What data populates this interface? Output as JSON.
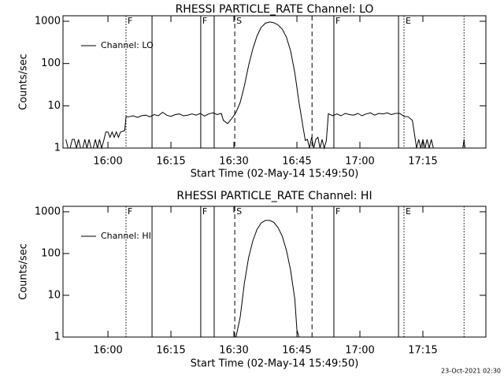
{
  "chart_data": [
    {
      "type": "line",
      "title": "RHESSI PARTICLE_RATE Channel: LO",
      "xlabel": "Start Time (02-May-14 15:49:50)",
      "ylabel": "Counts/sec",
      "x": [
        950,
        950.5,
        951,
        951.5,
        952,
        952.5,
        953,
        953.5,
        954,
        954.5,
        955,
        955.5,
        956,
        956.5,
        957,
        957.5,
        958,
        958.5,
        959,
        959.5,
        960,
        960.5,
        961,
        961.5,
        962,
        962.5,
        963,
        964,
        964.3,
        965,
        966,
        967,
        968,
        969,
        970,
        971,
        972,
        973,
        974,
        975,
        976,
        977,
        978,
        979,
        980,
        981,
        982,
        983,
        984,
        985,
        986,
        987,
        987.5,
        988.5,
        989.5,
        990.5,
        991.5,
        992.5,
        993.5,
        994.5,
        995.5,
        996.5,
        997.5,
        998.5,
        999.5,
        1000.5,
        1001.5,
        1002.5,
        1003.5,
        1004.5,
        1005.5,
        1006.5,
        1007,
        1007.5,
        1008,
        1008.5,
        1009,
        1009.5,
        1010,
        1010.5,
        1011,
        1011.5,
        1012,
        1012.5,
        1013.5,
        1014.5,
        1015.5,
        1016.5,
        1017.5,
        1018.5,
        1019.5,
        1020.5,
        1021.5,
        1022.5,
        1023.5,
        1024.5,
        1025.5,
        1026.5,
        1027.5,
        1028.5,
        1029.5,
        1030.5,
        1031.5,
        1032.5,
        1033.5,
        1034,
        1034.5,
        1035,
        1035.5,
        1036,
        1036.5,
        1037,
        1037.5,
        1038,
        1044.5,
        1044.8,
        1045,
        1050
      ],
      "series": [
        {
          "name": "Channel: LO",
          "color": "#000000",
          "values": [
            1.6,
            1,
            1,
            1.6,
            1.6,
            1,
            1.6,
            1,
            1,
            1.6,
            1,
            1.6,
            1,
            1,
            1.6,
            1,
            1.6,
            1,
            1.5,
            2.4,
            2.4,
            1.8,
            2.4,
            1.8,
            2.4,
            1.8,
            2.4,
            2.6,
            5.5,
            5.5,
            5.8,
            5.3,
            5.8,
            6,
            5.5,
            6.2,
            5.8,
            7,
            6,
            5.6,
            6.2,
            6.4,
            5.8,
            6,
            6.4,
            6,
            6.6,
            5.7,
            6.4,
            6.8,
            6.2,
            6.6,
            4.5,
            3.8,
            5,
            7,
            12,
            30,
            90,
            220,
            450,
            720,
            900,
            960,
            920,
            820,
            650,
            420,
            200,
            60,
            12,
            3,
            1.5,
            1.6,
            1,
            1.8,
            1,
            1.6,
            1.8,
            1,
            1.6,
            1,
            1.5,
            6.5,
            5.8,
            6.4,
            5.8,
            6.6,
            6.2,
            6,
            6.6,
            5.8,
            6.4,
            6.8,
            6,
            6.6,
            6.4,
            6.8,
            6.2,
            6.6,
            6.6,
            5.6,
            5.5,
            4.5,
            1,
            1.6,
            1,
            1.6,
            1,
            1.6,
            1,
            1.6,
            1,
            1,
            1,
            1.6,
            1,
            1
          ]
        }
      ],
      "xlim": [
        949.3,
        1050
      ],
      "ylim": [
        1,
        1350
      ],
      "log_y": true,
      "legend": "upper left",
      "xticks": [
        {
          "value": 960,
          "label": "16:00"
        },
        {
          "value": 975,
          "label": "16:15"
        },
        {
          "value": 990,
          "label": "16:30"
        },
        {
          "value": 1005,
          "label": "16:45"
        },
        {
          "value": 1020,
          "label": "17:00"
        },
        {
          "value": 1035,
          "label": "17:15"
        }
      ],
      "yticks": [
        1,
        10,
        100,
        1000
      ],
      "markers": [
        {
          "x": 964.3,
          "style": "dotted",
          "label": "F"
        },
        {
          "x": 970.5,
          "style": "solid"
        },
        {
          "x": 982.1,
          "style": "solid",
          "label": "F"
        },
        {
          "x": 985.3,
          "style": "solid"
        },
        {
          "x": 990.2,
          "style": "dashed",
          "label": "S"
        },
        {
          "x": 1008.6,
          "style": "dashed"
        },
        {
          "x": 1013.8,
          "style": "solid",
          "label": "F"
        },
        {
          "x": 1029.2,
          "style": "solid"
        },
        {
          "x": 1030.5,
          "style": "dotted",
          "label": "E"
        },
        {
          "x": 1044.8,
          "style": "dotted"
        }
      ]
    },
    {
      "type": "line",
      "title": "RHESSI PARTICLE_RATE Channel: HI",
      "xlabel": "Start Time (02-May-14 15:49:50)",
      "ylabel": "Counts/sec",
      "x": [
        950,
        990.5,
        991.5,
        992.5,
        993.5,
        994.5,
        995.5,
        996.5,
        997.5,
        998.5,
        999.5,
        1000.5,
        1001.5,
        1002.5,
        1003.5,
        1004.5,
        1005,
        1005.5,
        1050
      ],
      "series": [
        {
          "name": "Channel: HI",
          "color": "#000000",
          "values": [
            1,
            1,
            3,
            20,
            80,
            200,
            380,
            540,
            620,
            620,
            560,
            420,
            260,
            120,
            40,
            8,
            1.5,
            1,
            1
          ]
        }
      ],
      "xlim": [
        949.3,
        1050
      ],
      "ylim": [
        1,
        1350
      ],
      "log_y": true,
      "legend": "upper left",
      "xticks": [
        {
          "value": 960,
          "label": "16:00"
        },
        {
          "value": 975,
          "label": "16:15"
        },
        {
          "value": 990,
          "label": "16:30"
        },
        {
          "value": 1005,
          "label": "16:45"
        },
        {
          "value": 1020,
          "label": "17:00"
        },
        {
          "value": 1035,
          "label": "17:15"
        }
      ],
      "yticks": [
        1,
        10,
        100,
        1000
      ],
      "markers": [
        {
          "x": 964.3,
          "style": "dotted",
          "label": "F"
        },
        {
          "x": 970.5,
          "style": "solid"
        },
        {
          "x": 982.1,
          "style": "solid",
          "label": "F"
        },
        {
          "x": 985.3,
          "style": "solid"
        },
        {
          "x": 990.2,
          "style": "dashed",
          "label": "S"
        },
        {
          "x": 1008.6,
          "style": "dashed"
        },
        {
          "x": 1013.8,
          "style": "solid",
          "label": "F"
        },
        {
          "x": 1029.2,
          "style": "solid"
        },
        {
          "x": 1030.5,
          "style": "dotted",
          "label": "E"
        },
        {
          "x": 1044.8,
          "style": "dotted"
        }
      ]
    }
  ],
  "footer": "23-Oct-2021 02:30"
}
